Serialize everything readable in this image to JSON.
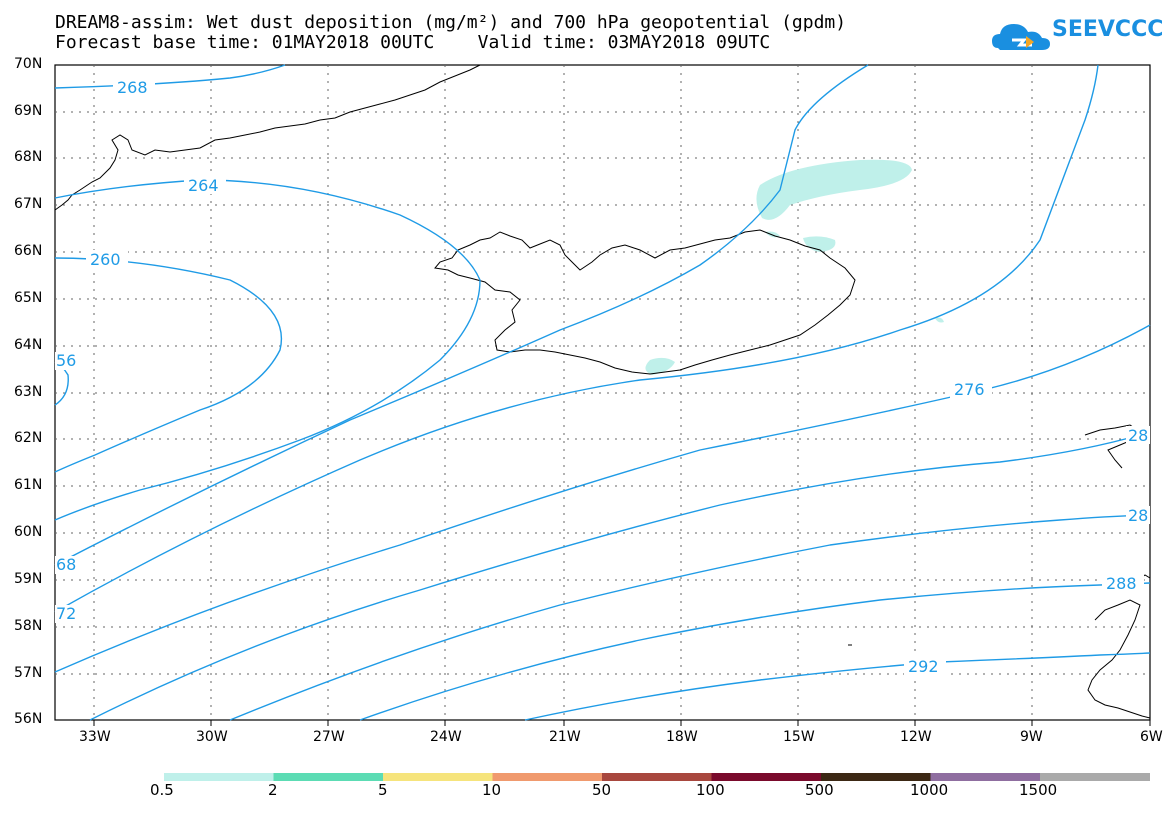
{
  "title": {
    "line1": "DREAM8-assim: Wet dust deposition (mg/m²) and 700 hPa geopotential (gpdm)",
    "line2": "Forecast base time: 01MAY2018 00UTC    Valid time: 03MAY2018 09UTC"
  },
  "logo": {
    "text": "SEEVCCC",
    "icon": "cloud-icon",
    "color": "#1a8fe0"
  },
  "map": {
    "lat_labels": [
      "70N",
      "69N",
      "68N",
      "67N",
      "66N",
      "65N",
      "64N",
      "63N",
      "62N",
      "61N",
      "60N",
      "59N",
      "58N",
      "57N",
      "56N"
    ],
    "lon_labels": [
      "33W",
      "30W",
      "27W",
      "24W",
      "21W",
      "18W",
      "15W",
      "12W",
      "9W",
      "6W"
    ],
    "contour_color": "#1f9be6",
    "contour_labels": [
      "268",
      "264",
      "260",
      "56",
      "68",
      "72",
      "276",
      "28",
      "28",
      "288",
      "292"
    ],
    "dust_color": "#bff0ea"
  },
  "colorbar": {
    "labels": [
      "0.5",
      "2",
      "5",
      "10",
      "50",
      "100",
      "500",
      "1000",
      "1500"
    ],
    "colors": [
      "#bff0ea",
      "#5cdcb4",
      "#f6e47c",
      "#f09a6e",
      "#a8473e",
      "#7a0a2c",
      "#3c2814",
      "#8f6ea0",
      "#aaaaaa"
    ]
  }
}
